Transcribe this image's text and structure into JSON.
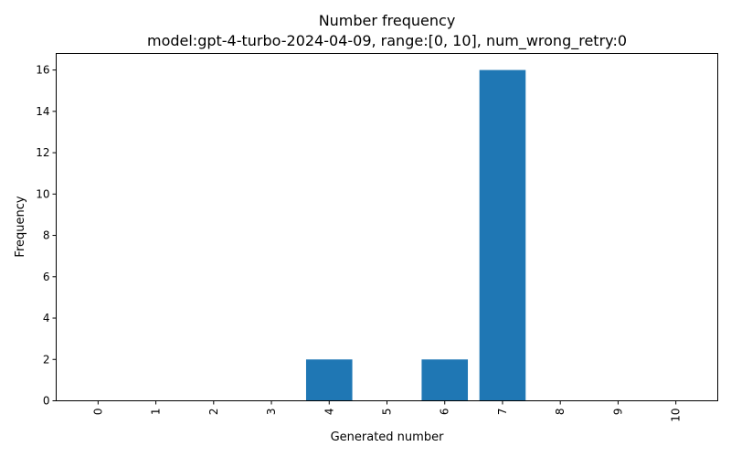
{
  "chart_data": {
    "type": "bar",
    "title": "Number frequency",
    "subtitle": "model:gpt-4-turbo-2024-04-09, range:[0, 10], num_wrong_retry:0",
    "xlabel": "Generated number",
    "ylabel": "Frequency",
    "categories": [
      "0",
      "1",
      "2",
      "3",
      "4",
      "5",
      "6",
      "7",
      "8",
      "9",
      "10"
    ],
    "values": [
      0,
      0,
      0,
      0,
      2,
      0,
      2,
      16,
      0,
      0,
      0
    ],
    "ylim": [
      0,
      16.8
    ],
    "yticks": [
      0,
      2,
      4,
      6,
      8,
      10,
      12,
      14,
      16
    ],
    "bar_color": "#1f77b4",
    "grid": false,
    "xtick_rotation": 90
  }
}
